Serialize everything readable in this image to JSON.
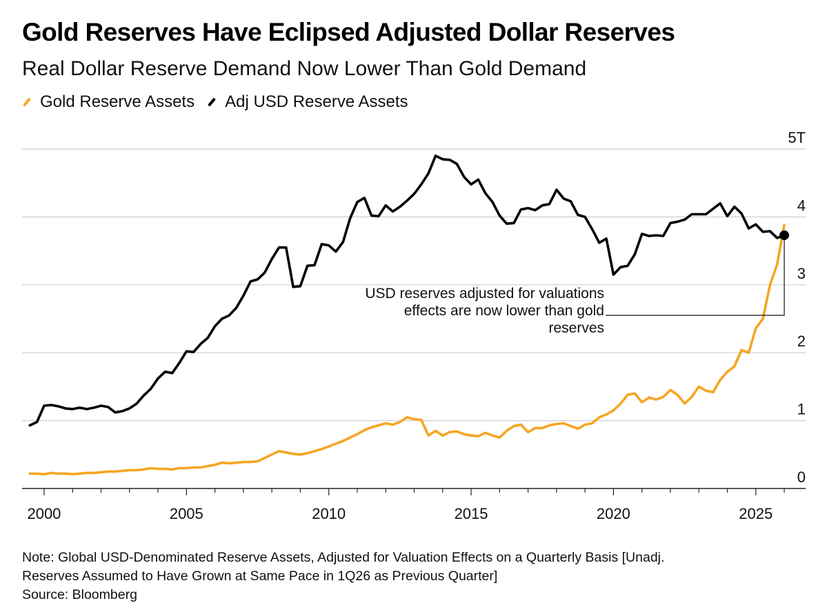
{
  "title": "Gold Reserves Have Eclipsed Adjusted Dollar Reserves",
  "subtitle": "Real Dollar Reserve Demand Now Lower Than Gold Demand",
  "colors": {
    "gold": "#f5a623",
    "usd": "#000000",
    "grid": "#cfcfcf"
  },
  "notes": {
    "line1": "Note: Global USD-Denominated Reserve Assets, Adjusted for Valuation Effects on a Quarterly Basis [Unadj.",
    "line2": "Reserves Assumed to Have Grown at Same Pace in 1Q26 as Previous Quarter]",
    "source": "Source: Bloomberg"
  },
  "chart_data": {
    "type": "line",
    "ylim": [
      0,
      5
    ],
    "xlim": [
      1999.25,
      2026.75
    ],
    "y_ticks": [
      {
        "value": 0,
        "label": "0"
      },
      {
        "value": 1,
        "label": "1"
      },
      {
        "value": 2,
        "label": "2"
      },
      {
        "value": 3,
        "label": "3"
      },
      {
        "value": 4,
        "label": "4"
      },
      {
        "value": 5,
        "label": "5T"
      }
    ],
    "x_ticks": [
      {
        "value": 2000,
        "label": "2000"
      },
      {
        "value": 2005,
        "label": "2005"
      },
      {
        "value": 2010,
        "label": "2010"
      },
      {
        "value": 2015,
        "label": "2015"
      },
      {
        "value": 2020,
        "label": "2020"
      },
      {
        "value": 2025,
        "label": "2025"
      }
    ],
    "grid": true,
    "legend_position": "top-left",
    "annotation": {
      "lines": [
        "USD reserves adjusted for valuations",
        "effects are now lower than gold",
        "reserves"
      ],
      "x": 2026.0,
      "y": 3.73
    },
    "series": [
      {
        "name": "Gold Reserve Assets",
        "color": "#f5a623",
        "points": [
          [
            1999.5,
            0.22
          ],
          [
            1999.75,
            0.22
          ],
          [
            2000.0,
            0.21
          ],
          [
            2000.25,
            0.23
          ],
          [
            2000.5,
            0.22
          ],
          [
            2000.75,
            0.22
          ],
          [
            2001.0,
            0.21
          ],
          [
            2001.25,
            0.22
          ],
          [
            2001.5,
            0.23
          ],
          [
            2001.75,
            0.23
          ],
          [
            2002.0,
            0.24
          ],
          [
            2002.25,
            0.25
          ],
          [
            2002.5,
            0.25
          ],
          [
            2002.75,
            0.26
          ],
          [
            2003.0,
            0.27
          ],
          [
            2003.25,
            0.27
          ],
          [
            2003.5,
            0.28
          ],
          [
            2003.75,
            0.3
          ],
          [
            2004.0,
            0.29
          ],
          [
            2004.25,
            0.29
          ],
          [
            2004.5,
            0.28
          ],
          [
            2004.75,
            0.3
          ],
          [
            2005.0,
            0.3
          ],
          [
            2005.25,
            0.31
          ],
          [
            2005.5,
            0.31
          ],
          [
            2005.75,
            0.33
          ],
          [
            2006.0,
            0.35
          ],
          [
            2006.25,
            0.38
          ],
          [
            2006.5,
            0.37
          ],
          [
            2006.75,
            0.38
          ],
          [
            2007.0,
            0.39
          ],
          [
            2007.25,
            0.39
          ],
          [
            2007.5,
            0.4
          ],
          [
            2007.75,
            0.45
          ],
          [
            2008.0,
            0.5
          ],
          [
            2008.25,
            0.55
          ],
          [
            2008.5,
            0.53
          ],
          [
            2008.75,
            0.51
          ],
          [
            2009.0,
            0.5
          ],
          [
            2009.25,
            0.52
          ],
          [
            2009.5,
            0.55
          ],
          [
            2009.75,
            0.58
          ],
          [
            2010.0,
            0.62
          ],
          [
            2010.25,
            0.66
          ],
          [
            2010.5,
            0.7
          ],
          [
            2010.75,
            0.75
          ],
          [
            2011.0,
            0.8
          ],
          [
            2011.25,
            0.86
          ],
          [
            2011.5,
            0.9
          ],
          [
            2011.75,
            0.93
          ],
          [
            2012.0,
            0.96
          ],
          [
            2012.25,
            0.94
          ],
          [
            2012.5,
            0.98
          ],
          [
            2012.75,
            1.05
          ],
          [
            2013.0,
            1.02
          ],
          [
            2013.25,
            1.01
          ],
          [
            2013.5,
            0.78
          ],
          [
            2013.75,
            0.85
          ],
          [
            2014.0,
            0.78
          ],
          [
            2014.25,
            0.83
          ],
          [
            2014.5,
            0.84
          ],
          [
            2014.75,
            0.8
          ],
          [
            2015.0,
            0.78
          ],
          [
            2015.25,
            0.77
          ],
          [
            2015.5,
            0.82
          ],
          [
            2015.75,
            0.78
          ],
          [
            2016.0,
            0.75
          ],
          [
            2016.25,
            0.85
          ],
          [
            2016.5,
            0.92
          ],
          [
            2016.75,
            0.94
          ],
          [
            2017.0,
            0.83
          ],
          [
            2017.25,
            0.89
          ],
          [
            2017.5,
            0.89
          ],
          [
            2017.75,
            0.93
          ],
          [
            2018.0,
            0.95
          ],
          [
            2018.25,
            0.96
          ],
          [
            2018.5,
            0.92
          ],
          [
            2018.75,
            0.88
          ],
          [
            2019.0,
            0.94
          ],
          [
            2019.25,
            0.96
          ],
          [
            2019.5,
            1.05
          ],
          [
            2019.75,
            1.09
          ],
          [
            2020.0,
            1.15
          ],
          [
            2020.25,
            1.25
          ],
          [
            2020.5,
            1.38
          ],
          [
            2020.75,
            1.4
          ],
          [
            2021.0,
            1.27
          ],
          [
            2021.25,
            1.34
          ],
          [
            2021.5,
            1.31
          ],
          [
            2021.75,
            1.35
          ],
          [
            2022.0,
            1.45
          ],
          [
            2022.25,
            1.38
          ],
          [
            2022.5,
            1.25
          ],
          [
            2022.75,
            1.35
          ],
          [
            2023.0,
            1.5
          ],
          [
            2023.25,
            1.44
          ],
          [
            2023.5,
            1.42
          ],
          [
            2023.75,
            1.6
          ],
          [
            2024.0,
            1.72
          ],
          [
            2024.25,
            1.8
          ],
          [
            2024.5,
            2.04
          ],
          [
            2024.75,
            2.0
          ],
          [
            2025.0,
            2.36
          ],
          [
            2025.25,
            2.5
          ],
          [
            2025.5,
            3.0
          ],
          [
            2025.75,
            3.3
          ],
          [
            2026.0,
            3.88
          ]
        ]
      },
      {
        "name": "Adj USD Reserve Assets",
        "color": "#000000",
        "points": [
          [
            1999.5,
            0.93
          ],
          [
            1999.75,
            0.98
          ],
          [
            2000.0,
            1.22
          ],
          [
            2000.25,
            1.23
          ],
          [
            2000.5,
            1.21
          ],
          [
            2000.75,
            1.18
          ],
          [
            2001.0,
            1.17
          ],
          [
            2001.25,
            1.19
          ],
          [
            2001.5,
            1.17
          ],
          [
            2001.75,
            1.19
          ],
          [
            2002.0,
            1.22
          ],
          [
            2002.25,
            1.2
          ],
          [
            2002.5,
            1.12
          ],
          [
            2002.75,
            1.14
          ],
          [
            2003.0,
            1.18
          ],
          [
            2003.25,
            1.25
          ],
          [
            2003.5,
            1.37
          ],
          [
            2003.75,
            1.47
          ],
          [
            2004.0,
            1.62
          ],
          [
            2004.25,
            1.72
          ],
          [
            2004.5,
            1.7
          ],
          [
            2004.75,
            1.85
          ],
          [
            2005.0,
            2.02
          ],
          [
            2005.25,
            2.01
          ],
          [
            2005.5,
            2.13
          ],
          [
            2005.75,
            2.22
          ],
          [
            2006.0,
            2.39
          ],
          [
            2006.25,
            2.5
          ],
          [
            2006.5,
            2.55
          ],
          [
            2006.75,
            2.66
          ],
          [
            2007.0,
            2.84
          ],
          [
            2007.25,
            3.05
          ],
          [
            2007.5,
            3.08
          ],
          [
            2007.75,
            3.18
          ],
          [
            2008.0,
            3.38
          ],
          [
            2008.25,
            3.55
          ],
          [
            2008.5,
            3.55
          ],
          [
            2008.75,
            2.97
          ],
          [
            2009.0,
            2.98
          ],
          [
            2009.25,
            3.28
          ],
          [
            2009.5,
            3.29
          ],
          [
            2009.75,
            3.6
          ],
          [
            2010.0,
            3.58
          ],
          [
            2010.25,
            3.49
          ],
          [
            2010.5,
            3.63
          ],
          [
            2010.75,
            3.98
          ],
          [
            2011.0,
            4.22
          ],
          [
            2011.25,
            4.28
          ],
          [
            2011.5,
            4.02
          ],
          [
            2011.75,
            4.01
          ],
          [
            2012.0,
            4.17
          ],
          [
            2012.25,
            4.08
          ],
          [
            2012.5,
            4.15
          ],
          [
            2012.75,
            4.24
          ],
          [
            2013.0,
            4.34
          ],
          [
            2013.25,
            4.48
          ],
          [
            2013.5,
            4.64
          ],
          [
            2013.75,
            4.9
          ],
          [
            2014.0,
            4.85
          ],
          [
            2014.25,
            4.84
          ],
          [
            2014.5,
            4.78
          ],
          [
            2014.75,
            4.59
          ],
          [
            2015.0,
            4.48
          ],
          [
            2015.25,
            4.55
          ],
          [
            2015.5,
            4.35
          ],
          [
            2015.75,
            4.22
          ],
          [
            2016.0,
            4.02
          ],
          [
            2016.25,
            3.9
          ],
          [
            2016.5,
            3.91
          ],
          [
            2016.75,
            4.11
          ],
          [
            2017.0,
            4.13
          ],
          [
            2017.25,
            4.1
          ],
          [
            2017.5,
            4.17
          ],
          [
            2017.75,
            4.19
          ],
          [
            2018.0,
            4.4
          ],
          [
            2018.25,
            4.27
          ],
          [
            2018.5,
            4.23
          ],
          [
            2018.75,
            4.03
          ],
          [
            2019.0,
            4.0
          ],
          [
            2019.25,
            3.82
          ],
          [
            2019.5,
            3.62
          ],
          [
            2019.75,
            3.68
          ],
          [
            2020.0,
            3.15
          ],
          [
            2020.25,
            3.26
          ],
          [
            2020.5,
            3.28
          ],
          [
            2020.75,
            3.45
          ],
          [
            2021.0,
            3.75
          ],
          [
            2021.25,
            3.72
          ],
          [
            2021.5,
            3.73
          ],
          [
            2021.75,
            3.72
          ],
          [
            2022.0,
            3.91
          ],
          [
            2022.25,
            3.93
          ],
          [
            2022.5,
            3.96
          ],
          [
            2022.75,
            4.04
          ],
          [
            2023.0,
            4.04
          ],
          [
            2023.25,
            4.04
          ],
          [
            2023.5,
            4.12
          ],
          [
            2023.75,
            4.2
          ],
          [
            2024.0,
            4.01
          ],
          [
            2024.25,
            4.15
          ],
          [
            2024.5,
            4.05
          ],
          [
            2024.75,
            3.83
          ],
          [
            2025.0,
            3.89
          ],
          [
            2025.25,
            3.78
          ],
          [
            2025.5,
            3.79
          ],
          [
            2025.75,
            3.69
          ],
          [
            2026.0,
            3.73
          ]
        ]
      }
    ]
  }
}
